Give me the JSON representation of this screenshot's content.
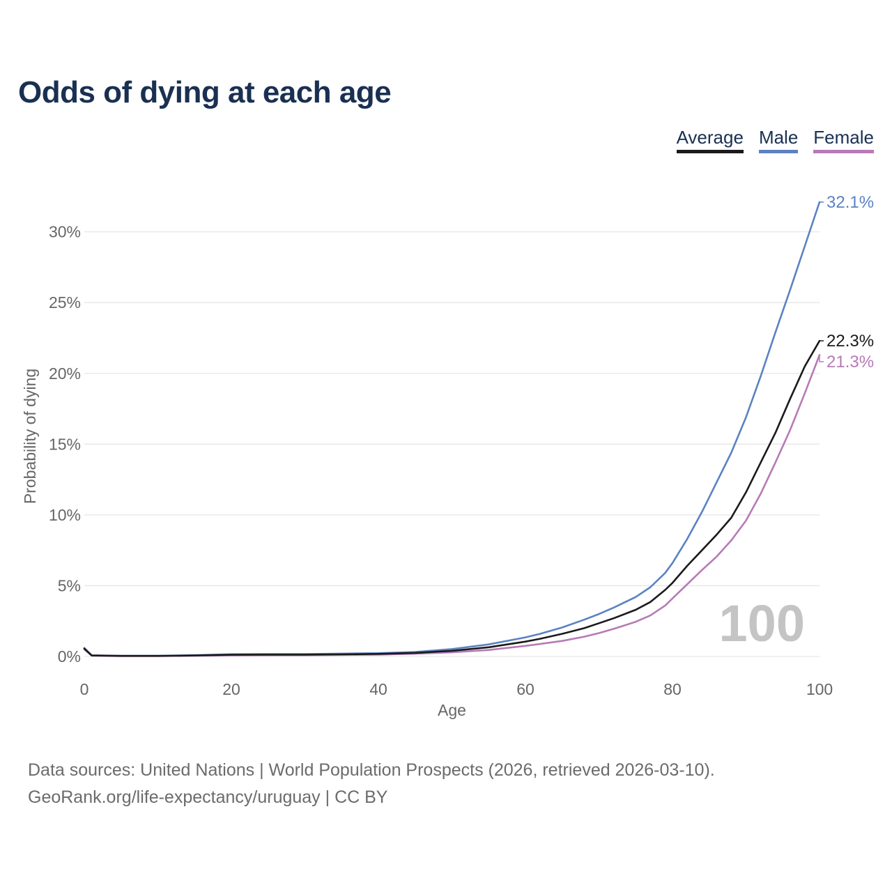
{
  "title": "Odds of dying at each age",
  "legend": [
    {
      "label": "Average",
      "color": "#1a1a1a"
    },
    {
      "label": "Male",
      "color": "#5b82c2"
    },
    {
      "label": "Female",
      "color": "#b77ab6"
    }
  ],
  "age_marker": "100",
  "footer": {
    "line1": "Data sources: United Nations | World Population Prospects (2026, retrieved 2026-03-10).",
    "line2": "GeoRank.org/life-expectancy/uruguay | CC BY"
  },
  "chart_data": {
    "type": "line",
    "title": "Odds of dying at each age",
    "xlabel": "Age",
    "ylabel": "Probability of dying",
    "xlim": [
      0,
      100
    ],
    "ylim": [
      0,
      32.1
    ],
    "x_ticks": [
      0,
      20,
      40,
      60,
      80,
      100
    ],
    "y_ticks": [
      0,
      5,
      10,
      15,
      20,
      25,
      30
    ],
    "y_tick_labels": [
      "0%",
      "5%",
      "10%",
      "15%",
      "20%",
      "25%",
      "30%"
    ],
    "x_tick_labels": [
      "0",
      "20",
      "40",
      "60",
      "80",
      "100"
    ],
    "grid": true,
    "x": [
      0,
      1,
      5,
      10,
      15,
      20,
      25,
      30,
      35,
      40,
      45,
      50,
      55,
      60,
      62,
      65,
      68,
      70,
      72,
      75,
      77,
      79,
      80,
      82,
      84,
      86,
      88,
      90,
      92,
      94,
      96,
      98,
      100
    ],
    "series": [
      {
        "name": "Average",
        "color": "#1a1a1a",
        "end_label": "22.3%",
        "values": [
          0.55,
          0.07,
          0.04,
          0.04,
          0.07,
          0.12,
          0.13,
          0.13,
          0.15,
          0.18,
          0.25,
          0.4,
          0.65,
          1.05,
          1.25,
          1.6,
          2.0,
          2.35,
          2.7,
          3.3,
          3.85,
          4.7,
          5.2,
          6.4,
          7.5,
          8.6,
          9.8,
          11.6,
          13.7,
          15.8,
          18.2,
          20.5,
          22.3
        ]
      },
      {
        "name": "Male",
        "color": "#5b82c2",
        "end_label": "32.1%",
        "values": [
          0.6,
          0.08,
          0.05,
          0.05,
          0.09,
          0.16,
          0.17,
          0.17,
          0.2,
          0.23,
          0.32,
          0.52,
          0.85,
          1.35,
          1.6,
          2.05,
          2.6,
          3.0,
          3.45,
          4.2,
          4.9,
          5.9,
          6.6,
          8.3,
          10.2,
          12.3,
          14.4,
          16.9,
          19.8,
          22.9,
          25.9,
          29.0,
          32.1
        ]
      },
      {
        "name": "Female",
        "color": "#b77ab6",
        "end_label": "21.3%",
        "values": [
          0.5,
          0.06,
          0.03,
          0.03,
          0.05,
          0.08,
          0.09,
          0.09,
          0.11,
          0.13,
          0.19,
          0.29,
          0.46,
          0.75,
          0.88,
          1.1,
          1.4,
          1.65,
          1.95,
          2.45,
          2.9,
          3.6,
          4.1,
          5.1,
          6.1,
          7.05,
          8.2,
          9.6,
          11.5,
          13.7,
          16.0,
          18.6,
          21.3
        ]
      }
    ]
  }
}
